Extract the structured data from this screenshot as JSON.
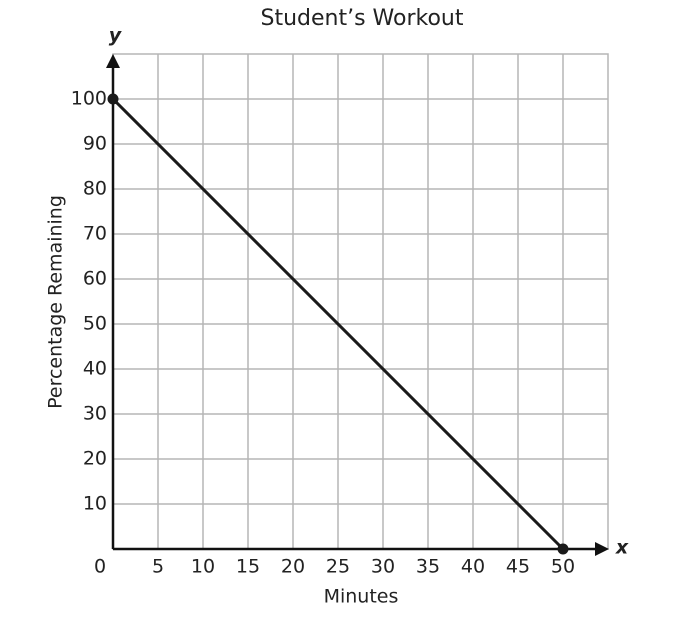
{
  "chart_data": {
    "type": "line",
    "title": "Student’s Workout",
    "x_label": "Minutes",
    "y_label": "Percentage Remaining",
    "x_axis_symbol": "x",
    "y_axis_symbol": "y",
    "x": [
      0,
      50
    ],
    "series": [
      {
        "name": null,
        "color": "#1a1a1a",
        "values": [
          100,
          0
        ]
      }
    ],
    "xlim": [
      0,
      55
    ],
    "ylim": [
      0,
      110
    ],
    "xticks": [
      0,
      5,
      10,
      15,
      20,
      25,
      30,
      35,
      40,
      45,
      50
    ],
    "yticks": [
      10,
      20,
      30,
      40,
      50,
      60,
      70,
      80,
      90,
      100
    ],
    "grid": true
  }
}
